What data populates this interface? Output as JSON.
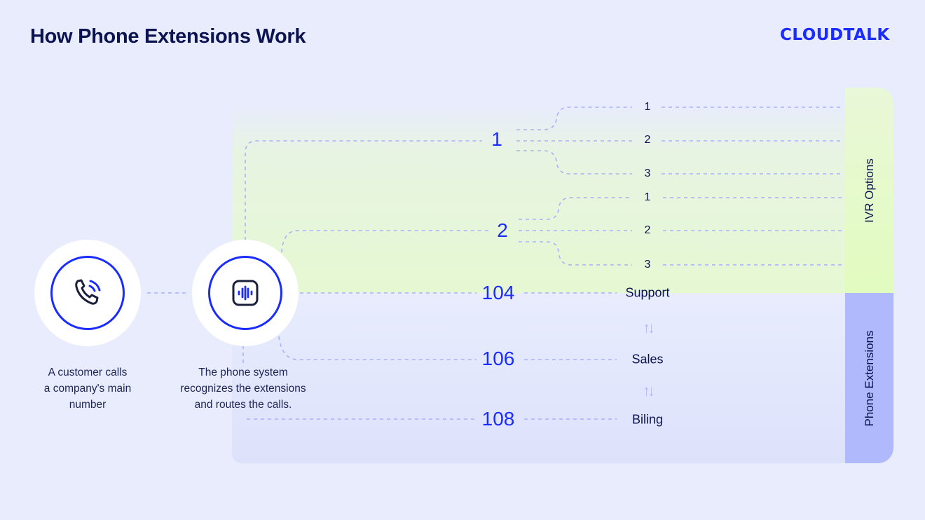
{
  "title": "How Phone Extensions Work",
  "logo": "CLOUDTALK",
  "colors": {
    "accent": "#1a2cff",
    "text": "#0b1450",
    "background": "#e9ecfd",
    "ivr_panel": "#e6f8d2",
    "extensions_panel": "#b0b9fb",
    "dash": "#a9b2f5"
  },
  "steps": [
    {
      "icon": "phone-calling-icon",
      "caption": [
        "A customer calls",
        "a company's main",
        "number"
      ]
    },
    {
      "icon": "voice-wave-icon",
      "caption": [
        "The phone system",
        "recognizes the extensions",
        "and routes the calls."
      ]
    }
  ],
  "ivr": {
    "label": "IVR Options",
    "options": [
      {
        "key": "1",
        "sub": [
          "1",
          "2",
          "3"
        ]
      },
      {
        "key": "2",
        "sub": [
          "1",
          "2",
          "3"
        ]
      }
    ]
  },
  "extensions": {
    "label": "Phone Extensions",
    "items": [
      {
        "number": "104",
        "department": "Support"
      },
      {
        "number": "106",
        "department": "Sales"
      },
      {
        "number": "108",
        "department": "Biling"
      }
    ],
    "swap_arrows": "↑↓"
  }
}
